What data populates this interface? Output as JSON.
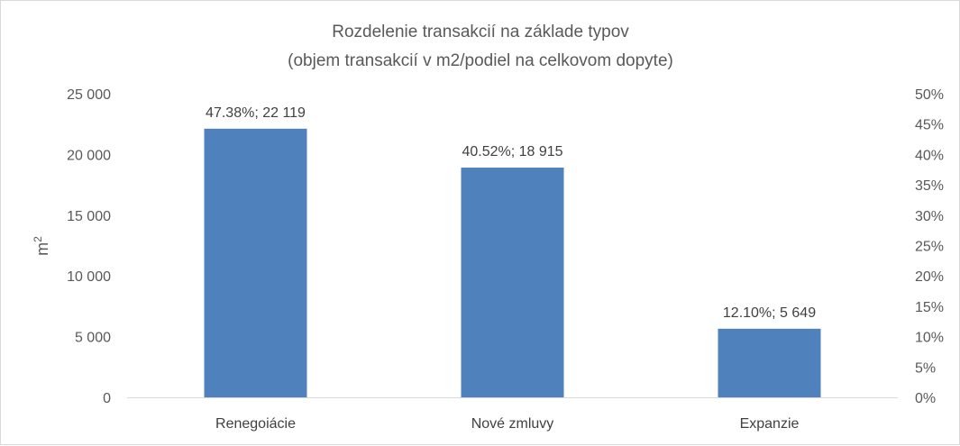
{
  "chart_data": {
    "type": "bar",
    "title_line1": "Rozdelenie transakcií na základe typov",
    "title_line2": "(objem transakcií v m2/podiel na celkovom dopyte)",
    "ylabel": "m",
    "ylabel_sup": "2",
    "categories": [
      "Renegoiácie",
      "Nové zmluvy",
      "Expanzie"
    ],
    "values": [
      22119,
      18915,
      5649
    ],
    "data_labels": [
      "47.38%; 22 119",
      "40.52%; 18 915",
      "12.10%; 5 649"
    ],
    "ylim": [
      0,
      25000
    ],
    "y_ticks": [
      "0",
      "5 000",
      "10 000",
      "15 000",
      "20 000",
      "25 000"
    ],
    "y2_ticks": [
      "0%",
      "5%",
      "10%",
      "15%",
      "20%",
      "25%",
      "30%",
      "35%",
      "40%",
      "45%",
      "50%"
    ],
    "y2lim": [
      0,
      50
    ],
    "bar_color": "#4f81bd",
    "grid": false
  }
}
